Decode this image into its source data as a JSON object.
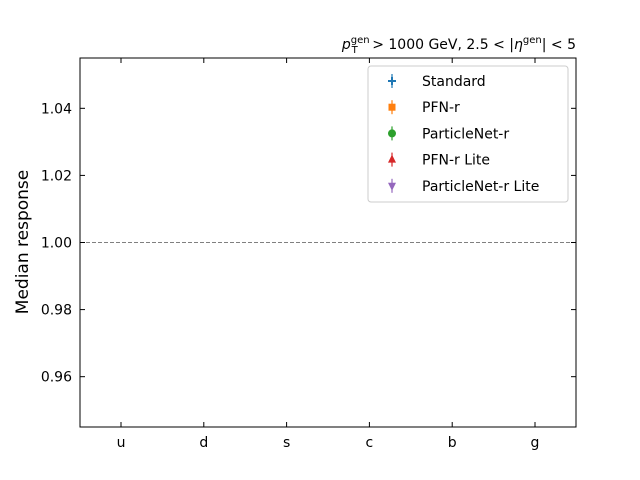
{
  "chart_data": {
    "type": "scatter",
    "title": {
      "p": "p",
      "t_sub": "T",
      "gen_sup": "gen",
      "mid": " > 1000 GeV, 2.5 < |",
      "eta": "η",
      "eta_sup": "gen",
      "end": "| < 5"
    },
    "xlabel": "",
    "ylabel": "Median response",
    "categories": [
      "u",
      "d",
      "s",
      "c",
      "b",
      "g"
    ],
    "ylim": [
      0.945,
      1.055
    ],
    "yticks": [
      "0.96",
      "0.98",
      "1.00",
      "1.02",
      "1.04"
    ],
    "reference_line": 1.0,
    "grid": false,
    "legend_position": "top-right",
    "series": [
      {
        "name": "Standard",
        "marker": "plus",
        "color": "#1f77b4",
        "values": []
      },
      {
        "name": "PFN-r",
        "marker": "square",
        "color": "#ff7f0e",
        "values": []
      },
      {
        "name": "ParticleNet-r",
        "marker": "circle",
        "color": "#2ca02c",
        "values": []
      },
      {
        "name": "PFN-r Lite",
        "marker": "triangle-up",
        "color": "#d62728",
        "values": []
      },
      {
        "name": "ParticleNet-r Lite",
        "marker": "triangle-down",
        "color": "#9467bd",
        "values": []
      }
    ]
  }
}
